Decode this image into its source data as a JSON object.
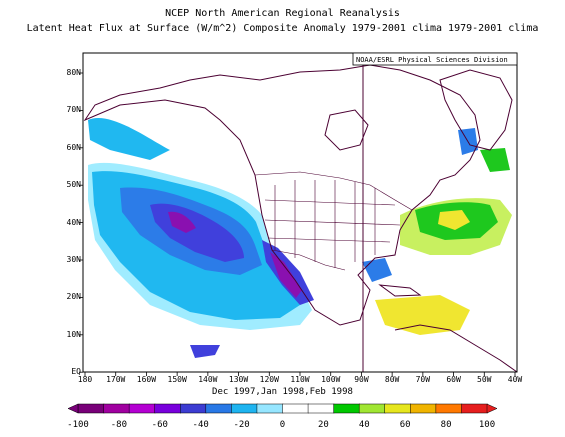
{
  "title_line1": "NCEP North American Regional Reanalysis",
  "title_line2": "Latent Heat Flux at Surface (W/m^2) Composite Anomaly 1979-2001 clima 1979-2001 clima",
  "credit": "NOAA/ESRL Physical Sciences Division",
  "season_label": "Dec 1997,Jan 1998,Feb 1998",
  "y_ticks": [
    "80N",
    "70N",
    "60N",
    "50N",
    "40N",
    "30N",
    "20N",
    "10N",
    "EQ"
  ],
  "x_ticks": [
    "180",
    "170W",
    "160W",
    "150W",
    "140W",
    "130W",
    "120W",
    "110W",
    "100W",
    "90W",
    "80W",
    "70W",
    "60W",
    "50W",
    "40W"
  ],
  "colorbar_labels": [
    "-100",
    "-80",
    "-60",
    "-40",
    "-20",
    "0",
    "20",
    "40",
    "60",
    "80",
    "100"
  ],
  "colorbar_colors": [
    "#780078",
    "#a000a0",
    "#b400d2",
    "#7800dc",
    "#3c3cd2",
    "#2878e6",
    "#1eb4f0",
    "#96e6ff",
    "#ffffff",
    "#ffffff",
    "#00c800",
    "#a0e632",
    "#e6e61e",
    "#f0b400",
    "#ff7800",
    "#e61e1e"
  ],
  "colors": {
    "coast": "#4b0032",
    "strong_negative": "#8a10b0",
    "negative": "#4040dc",
    "moderate_negative": "#2c7ce8",
    "weak_negative": "#20b8f0",
    "faint_negative": "#a0ecff",
    "weak_positive": "#c8f060",
    "positive": "#1ec81e",
    "strong_positive": "#f0e630"
  }
}
